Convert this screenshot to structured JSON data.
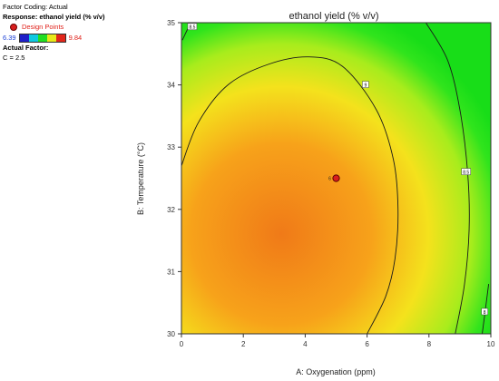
{
  "legend": {
    "factor_coding": "Factor Coding: Actual",
    "response": "Response: ethanol yield  (% v/v)",
    "design_points_label": "Design Points",
    "scale_min": "6.39",
    "scale_max": "9.84",
    "actual_factor_header": "Actual Factor:",
    "actual_factor_value": "C = 2.5"
  },
  "colors": {
    "scale": [
      "#1f1fc8",
      "#10c8e0",
      "#22dd22",
      "#e8e81a",
      "#e2261a"
    ],
    "design_point": "#d81e1e"
  },
  "chart_data": {
    "type": "contour",
    "title": "ethanol yield  (% v/v)",
    "xlabel": "A: Oxygenation  (ppm)",
    "ylabel": "B: Temperature  (°C)",
    "xlim": [
      0,
      10
    ],
    "ylim": [
      30,
      35
    ],
    "xticks": [
      "0",
      "2",
      "4",
      "6",
      "8",
      "10"
    ],
    "yticks": [
      "30",
      "31",
      "32",
      "33",
      "34",
      "35"
    ],
    "color_range": [
      6.39,
      9.84
    ],
    "contours": [
      {
        "label": "8.5",
        "points": [
          [
            0.03,
            34.72
          ],
          [
            0.22,
            34.92
          ]
        ],
        "label_at": [
          0.35,
          34.93
        ]
      },
      {
        "label": "9",
        "points": [
          [
            0.0,
            32.7
          ],
          [
            0.55,
            33.4
          ],
          [
            1.5,
            34.0
          ],
          [
            2.8,
            34.33
          ],
          [
            4.1,
            34.45
          ],
          [
            5.2,
            34.3
          ],
          [
            6.3,
            33.6
          ],
          [
            6.85,
            32.8
          ],
          [
            7.0,
            32.0
          ],
          [
            6.9,
            31.2
          ],
          [
            6.6,
            30.6
          ],
          [
            6.0,
            30.0
          ]
        ],
        "label_at": [
          5.95,
          34.0
        ]
      },
      {
        "label": "8.5",
        "points": [
          [
            7.9,
            35.0
          ],
          [
            8.6,
            34.4
          ],
          [
            9.0,
            33.6
          ],
          [
            9.25,
            32.6
          ],
          [
            9.3,
            31.7
          ],
          [
            9.15,
            30.8
          ],
          [
            8.85,
            30.0
          ]
        ],
        "label_at": [
          9.2,
          32.6
        ]
      },
      {
        "label": "8",
        "points": [
          [
            9.93,
            30.8
          ],
          [
            9.8,
            30.3
          ],
          [
            9.72,
            30.0
          ]
        ],
        "label_at": [
          9.8,
          30.35
        ]
      }
    ],
    "design_points": [
      {
        "x": 5.0,
        "y": 32.5,
        "label": "6"
      }
    ]
  }
}
